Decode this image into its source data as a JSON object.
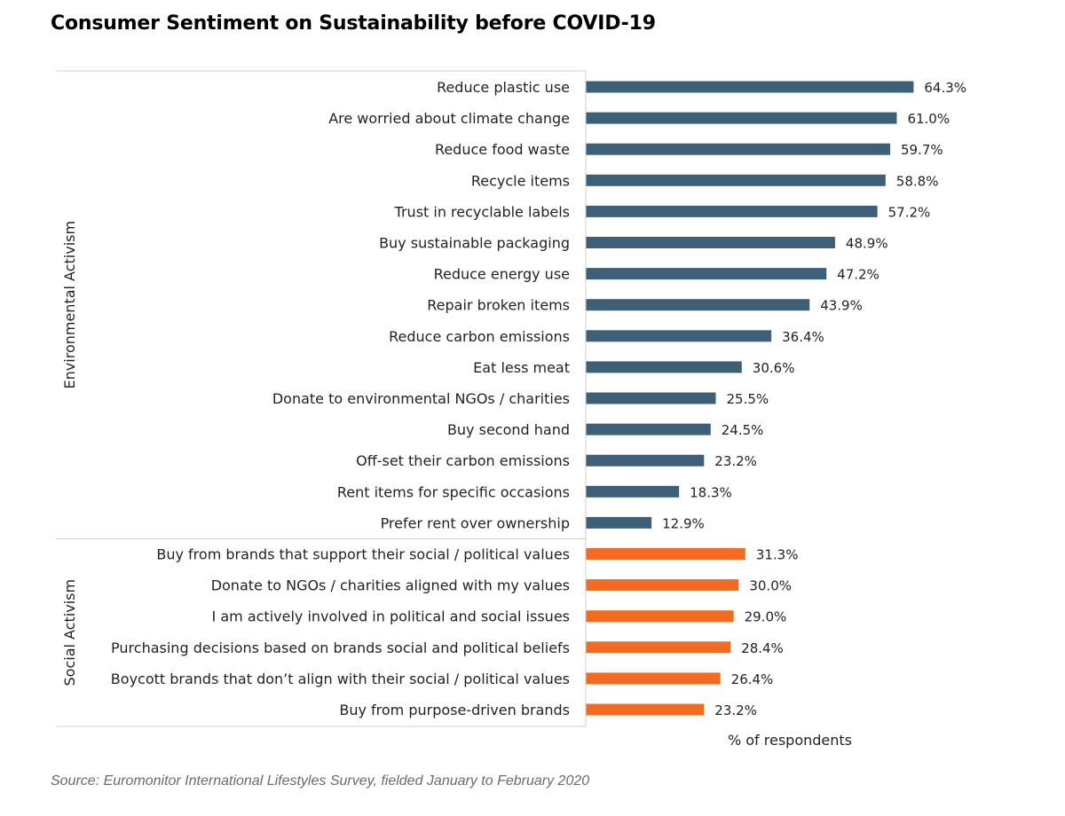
{
  "chart_data": {
    "type": "bar",
    "orientation": "horizontal",
    "title": "Consumer Sentiment on Sustainability before COVID-19",
    "xlabel": "% of respondents",
    "source": "Source: Euromonitor International Lifestyles Survey, fielded January to February 2020",
    "xlim": [
      0,
      70
    ],
    "grid": false,
    "groups": [
      {
        "name": "Environmental Activism",
        "color": "#3d6078",
        "categories": [
          "Reduce plastic use",
          "Are worried about climate change",
          "Reduce food waste",
          "Recycle items",
          "Trust in recyclable labels",
          "Buy sustainable packaging",
          "Reduce energy use",
          "Repair broken items",
          "Reduce carbon emissions",
          "Eat less meat",
          "Donate to environmental NGOs / charities",
          "Buy second hand",
          "Off-set their carbon emissions",
          "Rent items for specific occasions",
          "Prefer rent over ownership"
        ],
        "values": [
          64.3,
          61.0,
          59.7,
          58.8,
          57.2,
          48.9,
          47.2,
          43.9,
          36.4,
          30.6,
          25.5,
          24.5,
          23.2,
          18.3,
          12.9
        ],
        "value_labels": [
          "64.3%",
          "61.0%",
          "59.7%",
          "58.8%",
          "57.2%",
          "48.9%",
          "47.2%",
          "43.9%",
          "36.4%",
          "30.6%",
          "25.5%",
          "24.5%",
          "23.2%",
          "18.3%",
          "12.9%"
        ]
      },
      {
        "name": "Social Activism",
        "color": "#f26b21",
        "categories": [
          "Buy from brands that support their social / political values",
          "Donate to NGOs / charities aligned with my values",
          "I am actively involved in political and social issues",
          "Purchasing decisions based on brands social and political beliefs",
          "Boycott brands that don’t align with their social / political values",
          "Buy from purpose-driven brands"
        ],
        "values": [
          31.3,
          30.0,
          29.0,
          28.4,
          26.4,
          23.2
        ],
        "value_labels": [
          "31.3%",
          "30.0%",
          "29.0%",
          "28.4%",
          "26.4%",
          "23.2%"
        ]
      }
    ]
  }
}
